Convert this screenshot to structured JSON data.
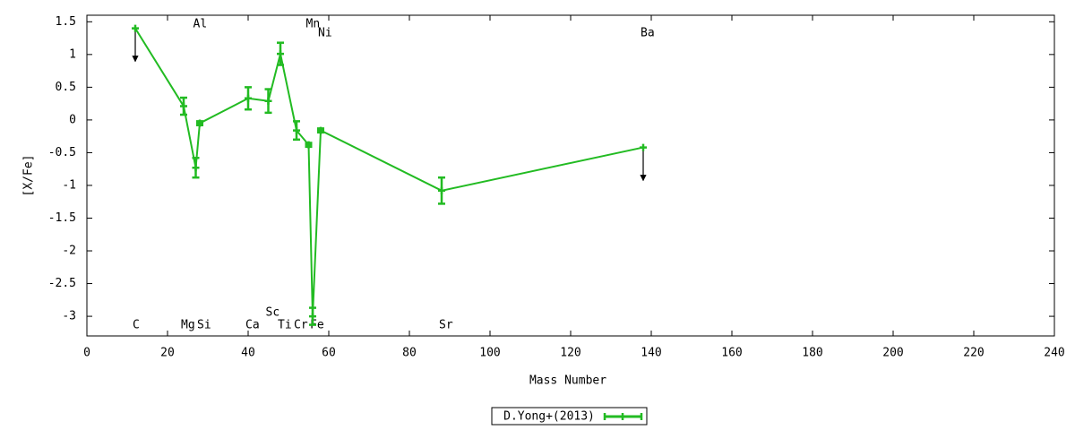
{
  "chart_data": {
    "type": "line",
    "x_label": "Mass Number",
    "y_label": "[X/Fe]",
    "x": [
      12,
      24,
      27,
      28,
      40,
      45,
      48,
      52,
      55,
      56,
      58,
      88,
      138
    ],
    "labels": [
      "C",
      "Mg",
      "Al",
      "Si",
      "Ca",
      "Sc",
      "Ti",
      "Cr",
      "Mn",
      "Fe",
      "Ni",
      "Sr",
      "Ba"
    ],
    "series": [
      {
        "name": "D.Yong+(2013)",
        "color": "#22bb22",
        "values": [
          1.4,
          0.21,
          -0.73,
          -0.05,
          0.33,
          0.29,
          1.01,
          -0.16,
          -0.38,
          -3.0,
          -0.16,
          -1.08,
          -0.42
        ],
        "errors": [
          null,
          0.13,
          0.15,
          0.03,
          0.17,
          0.18,
          0.17,
          0.14,
          0.03,
          0.13,
          0.03,
          0.2,
          null
        ],
        "upper_limit": [
          true,
          false,
          false,
          false,
          false,
          false,
          false,
          false,
          false,
          false,
          false,
          false,
          true
        ]
      }
    ],
    "xlim": [
      0,
      240
    ],
    "ylim": [
      -3.3,
      1.6
    ],
    "xticks": [
      0,
      20,
      40,
      60,
      80,
      100,
      120,
      140,
      160,
      180,
      200,
      220,
      240
    ],
    "yticks": [
      1.5,
      1,
      0.5,
      0,
      -0.5,
      -1,
      -1.5,
      -2,
      -2.5,
      -3
    ]
  }
}
